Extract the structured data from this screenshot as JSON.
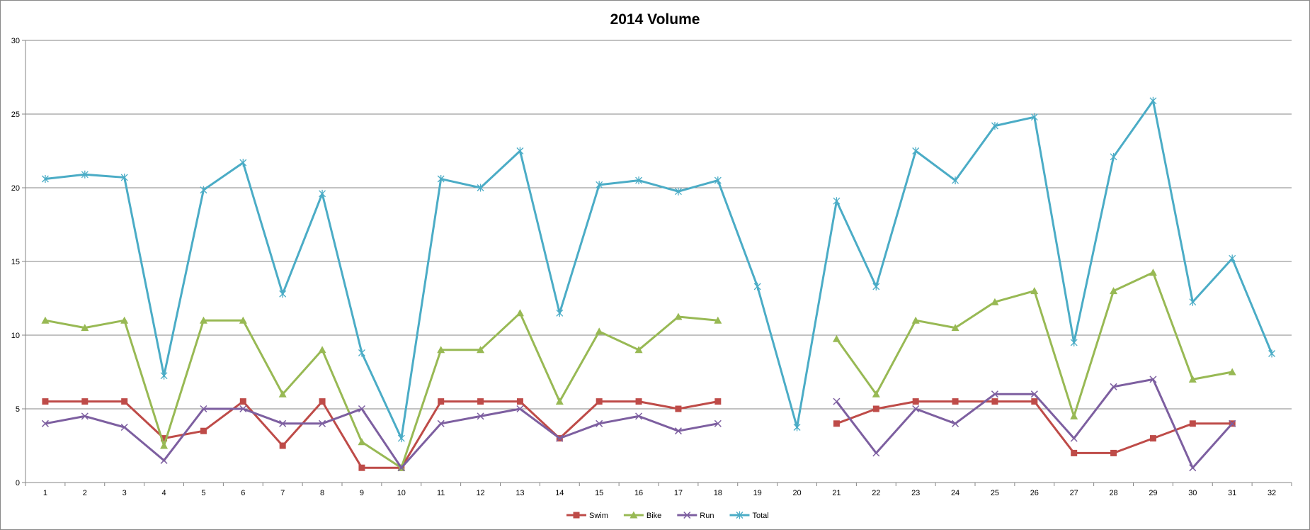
{
  "chart_data": {
    "type": "line",
    "title": "2014 Volume",
    "xlabel": "",
    "ylabel": "",
    "ylim": [
      0,
      30
    ],
    "yticks": [
      0,
      5,
      10,
      15,
      20,
      25,
      30
    ],
    "grid": true,
    "legend": "bottom",
    "categories": [
      "1",
      "2",
      "3",
      "4",
      "5",
      "6",
      "7",
      "8",
      "9",
      "10",
      "11",
      "12",
      "13",
      "14",
      "15",
      "16",
      "17",
      "18",
      "19",
      "20",
      "21",
      "22",
      "23",
      "24",
      "25",
      "26",
      "27",
      "28",
      "29",
      "30",
      "31",
      "32"
    ],
    "series": [
      {
        "name": "Swim",
        "color": "#be4b48",
        "marker": "square",
        "values": [
          5.5,
          5.5,
          5.5,
          3,
          3.5,
          5.5,
          2.5,
          5.5,
          1,
          1,
          5.5,
          5.5,
          5.5,
          3,
          5.5,
          5.5,
          5,
          5.5,
          null,
          null,
          4,
          5,
          5.5,
          5.5,
          5.5,
          5.5,
          2,
          2,
          3,
          4,
          4,
          null
        ]
      },
      {
        "name": "Bike",
        "color": "#98b954",
        "marker": "triangle",
        "values": [
          11,
          10.5,
          11,
          2.5,
          11,
          11,
          6,
          9,
          2.75,
          1,
          9,
          9,
          11.5,
          5.5,
          10.25,
          9,
          11.25,
          11,
          null,
          null,
          9.75,
          6,
          11,
          10.5,
          12.25,
          13,
          4.5,
          13,
          14.25,
          7,
          7.5,
          null
        ]
      },
      {
        "name": "Run",
        "color": "#7d5fa0",
        "marker": "x",
        "values": [
          4,
          4.5,
          3.75,
          1.5,
          5,
          5,
          4,
          4,
          5,
          1,
          4,
          4.5,
          5,
          3,
          4,
          4.5,
          3.5,
          4,
          null,
          null,
          5.5,
          2,
          5,
          4,
          6,
          6,
          3,
          6.5,
          7,
          1,
          4,
          null
        ]
      },
      {
        "name": "Total",
        "color": "#4bacc6",
        "marker": "star",
        "values": [
          20.6,
          20.9,
          20.7,
          7.25,
          19.85,
          21.7,
          12.8,
          19.6,
          8.8,
          3,
          20.6,
          20,
          22.5,
          11.5,
          20.2,
          20.5,
          19.75,
          20.5,
          13.3,
          3.75,
          19.1,
          13.3,
          22.5,
          20.5,
          24.2,
          24.8,
          9.5,
          22.1,
          25.9,
          12.25,
          15.2,
          8.75
        ]
      }
    ]
  }
}
